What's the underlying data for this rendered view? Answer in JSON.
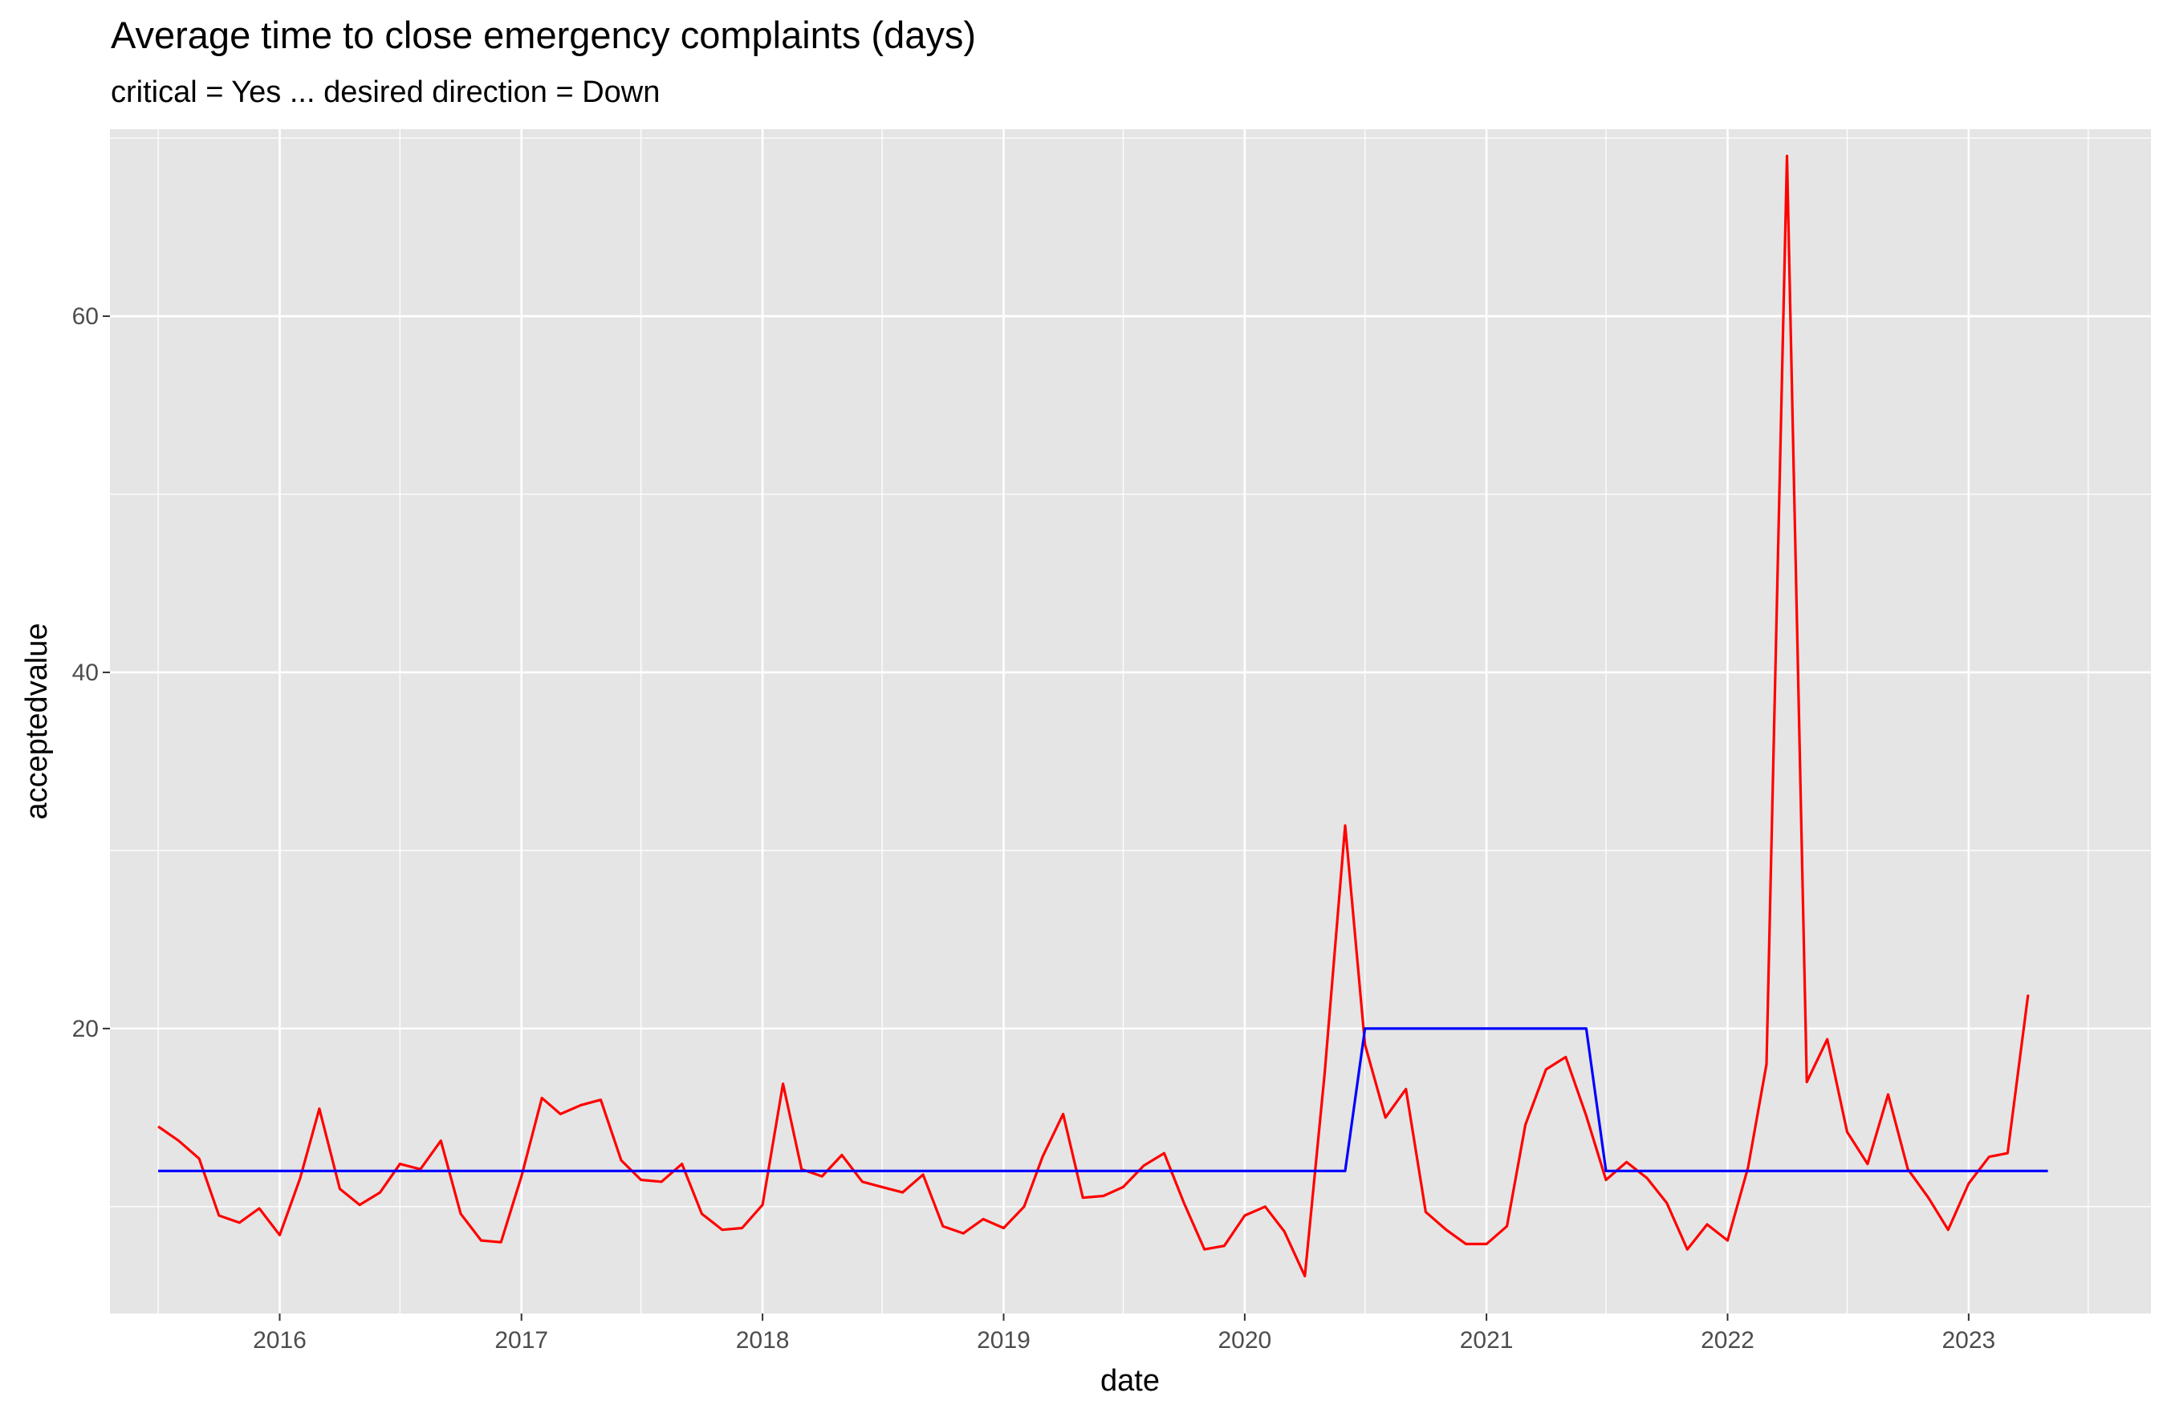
{
  "chart_data": {
    "type": "line",
    "title": "Average time to close emergency complaints (days)",
    "subtitle": "critical = Yes ... desired direction = Down",
    "xlabel": "date",
    "ylabel": "acceptedvalue",
    "x_ticks": [
      "2016",
      "2017",
      "2018",
      "2019",
      "2020",
      "2021",
      "2022",
      "2023"
    ],
    "y_ticks": [
      20,
      40,
      60
    ],
    "xlim": [
      "2015-04-19",
      "2023-10-04"
    ],
    "ylim": [
      4.0,
      70.5
    ],
    "colors": {
      "panel": "#e5e5e5",
      "grid": "#ffffff",
      "series1": "#ff0000",
      "series2": "#0000ff"
    },
    "series": [
      {
        "color": "#ff0000",
        "x": [
          "2015-07-01",
          "2015-08-01",
          "2015-09-01",
          "2015-10-01",
          "2015-11-01",
          "2015-12-01",
          "2016-01-01",
          "2016-02-01",
          "2016-03-01",
          "2016-04-01",
          "2016-05-01",
          "2016-06-01",
          "2016-07-01",
          "2016-08-01",
          "2016-09-01",
          "2016-10-01",
          "2016-11-01",
          "2016-12-01",
          "2017-01-01",
          "2017-02-01",
          "2017-03-01",
          "2017-04-01",
          "2017-05-01",
          "2017-06-01",
          "2017-07-01",
          "2017-08-01",
          "2017-09-01",
          "2017-10-01",
          "2017-11-01",
          "2017-12-01",
          "2018-01-01",
          "2018-02-01",
          "2018-03-01",
          "2018-04-01",
          "2018-05-01",
          "2018-06-01",
          "2018-07-01",
          "2018-08-01",
          "2018-09-01",
          "2018-10-01",
          "2018-11-01",
          "2018-12-01",
          "2019-01-01",
          "2019-02-01",
          "2019-03-01",
          "2019-04-01",
          "2019-05-01",
          "2019-06-01",
          "2019-07-01",
          "2019-08-01",
          "2019-09-01",
          "2019-10-01",
          "2019-11-01",
          "2019-12-01",
          "2020-01-01",
          "2020-02-01",
          "2020-03-01",
          "2020-04-01",
          "2020-05-01",
          "2020-06-01",
          "2020-07-01",
          "2020-08-01",
          "2020-09-01",
          "2020-10-01",
          "2020-11-01",
          "2020-12-01",
          "2021-01-01",
          "2021-02-01",
          "2021-03-01",
          "2021-04-01",
          "2021-05-01",
          "2021-06-01",
          "2021-07-01",
          "2021-08-01",
          "2021-09-01",
          "2021-10-01",
          "2021-11-01",
          "2021-12-01",
          "2022-01-01",
          "2022-02-01",
          "2022-03-01",
          "2022-04-01",
          "2022-05-01",
          "2022-06-01",
          "2022-07-01",
          "2022-08-01",
          "2022-09-01",
          "2022-10-01",
          "2022-11-01",
          "2022-12-01",
          "2023-01-01",
          "2023-02-01",
          "2023-03-01",
          "2023-04-01"
        ],
        "values": [
          14.5,
          13.7,
          12.7,
          9.5,
          9.1,
          9.9,
          8.4,
          11.6,
          15.5,
          11.0,
          10.1,
          10.8,
          12.4,
          12.1,
          13.7,
          9.6,
          8.1,
          8.0,
          11.7,
          16.1,
          15.2,
          15.7,
          16.0,
          12.6,
          11.5,
          11.4,
          12.4,
          9.6,
          8.7,
          8.8,
          10.1,
          16.9,
          12.1,
          11.7,
          12.9,
          11.4,
          11.1,
          10.8,
          11.8,
          8.9,
          8.5,
          9.3,
          8.8,
          10.0,
          12.8,
          15.2,
          10.5,
          10.6,
          11.1,
          12.3,
          13.0,
          10.2,
          7.6,
          7.8,
          9.5,
          10.0,
          8.6,
          6.1,
          17.5,
          31.4,
          19.1,
          15.0,
          16.6,
          9.7,
          8.7,
          7.9,
          7.9,
          8.9,
          14.6,
          17.7,
          18.4,
          15.1,
          11.5,
          12.5,
          11.6,
          10.2,
          7.6,
          9.0,
          8.1,
          12.2,
          18.0,
          69.0,
          17.0,
          19.4,
          14.2,
          12.4,
          16.3,
          12.1,
          10.5,
          8.7,
          11.3,
          12.8,
          13.0,
          21.9
        ]
      },
      {
        "color": "#0000ff",
        "x": [
          "2015-07-01",
          "2020-06-01",
          "2020-07-01",
          "2021-06-01",
          "2021-07-01",
          "2023-05-01"
        ],
        "values": [
          12.0,
          12.0,
          20.0,
          20.0,
          12.0,
          12.0
        ]
      }
    ]
  }
}
